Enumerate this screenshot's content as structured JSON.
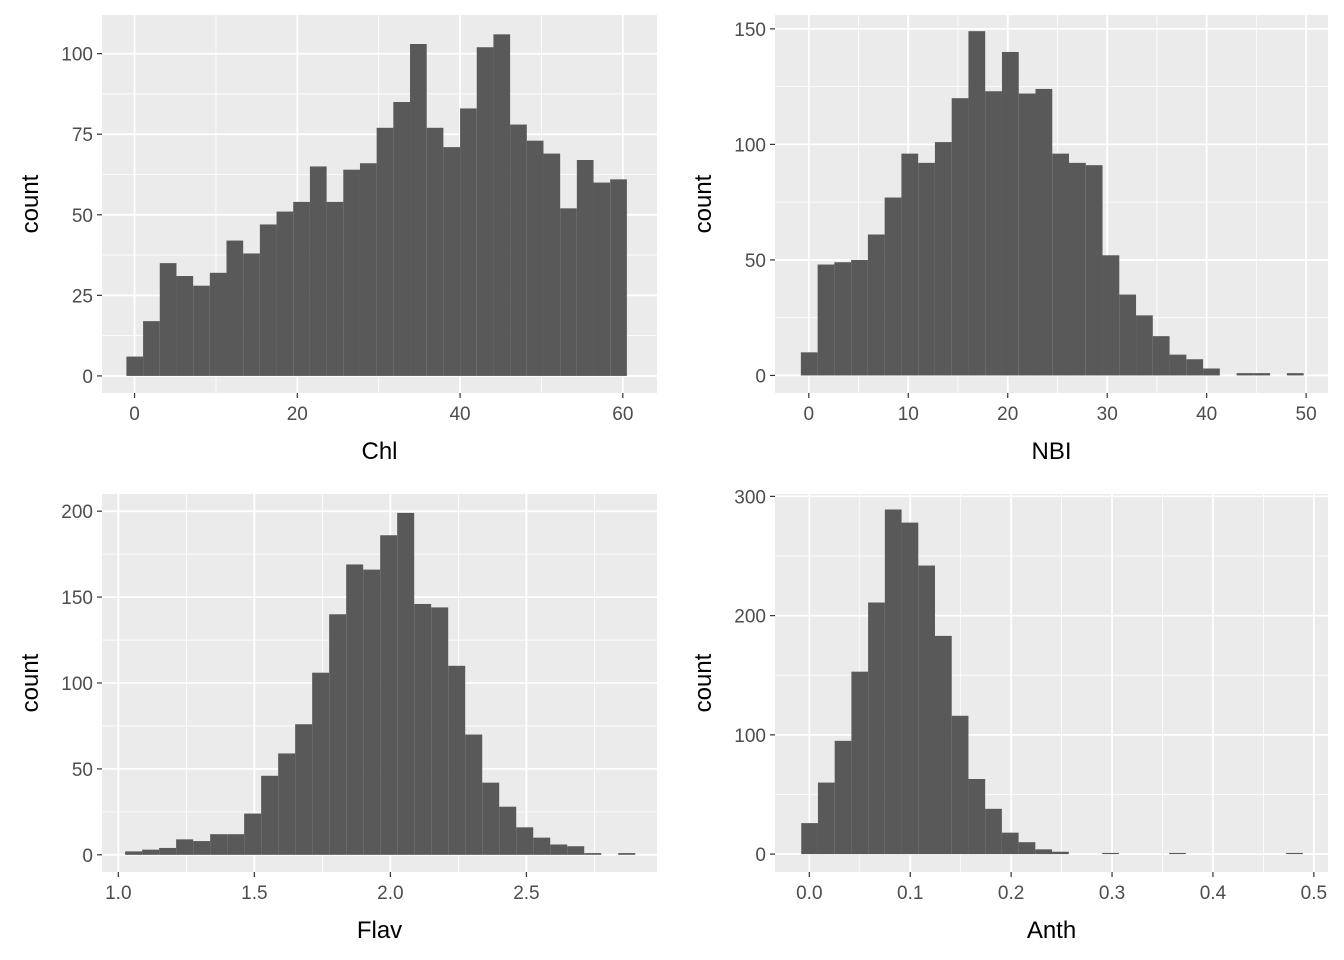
{
  "style": {
    "panel_background": "#ebebeb",
    "grid_color": "#ffffff",
    "bar_color": "#595959",
    "tick_color": "#333333",
    "tick_label_color": "#4d4d4d"
  },
  "chart_data": [
    {
      "type": "bar",
      "subtype": "histogram",
      "xlabel": "Chl",
      "ylabel": "count",
      "xlim": [
        -4.0,
        64.2
      ],
      "ylim": [
        -5.3,
        112
      ],
      "xticks": [
        0,
        20,
        40,
        60
      ],
      "xtick_labels": [
        "0",
        "20",
        "40",
        "60"
      ],
      "yticks": [
        0,
        25,
        50,
        75,
        100
      ],
      "ytick_labels": [
        "0",
        "25",
        "50",
        "75",
        "100"
      ],
      "grid": true,
      "bin_start": -1.0,
      "bin_width": 2.05,
      "values": [
        6,
        17,
        35,
        31,
        28,
        32,
        42,
        38,
        47,
        51,
        54,
        65,
        54,
        64,
        66,
        77,
        85,
        103,
        77,
        71,
        83,
        102,
        106,
        78,
        73,
        69,
        52,
        67,
        60,
        61
      ]
    },
    {
      "type": "bar",
      "subtype": "histogram",
      "xlabel": "NBI",
      "ylabel": "count",
      "xlim": [
        -3.4,
        52.2
      ],
      "ylim": [
        -7.6,
        156
      ],
      "xticks": [
        0,
        10,
        20,
        30,
        40,
        50
      ],
      "xtick_labels": [
        "0",
        "10",
        "20",
        "30",
        "40",
        "50"
      ],
      "yticks": [
        0,
        50,
        100,
        150
      ],
      "ytick_labels": [
        "0",
        "50",
        "100",
        "150"
      ],
      "grid": true,
      "bin_start": -0.8,
      "bin_width": 1.685,
      "values": [
        10,
        48,
        49,
        50,
        61,
        77,
        96,
        92,
        101,
        120,
        149,
        123,
        140,
        122,
        124,
        96,
        92,
        91,
        52,
        35,
        26,
        17,
        9,
        7,
        3,
        0,
        1,
        1,
        0,
        1
      ]
    },
    {
      "type": "bar",
      "subtype": "histogram",
      "xlabel": "Flav",
      "ylabel": "count",
      "xlim": [
        0.94,
        2.98
      ],
      "ylim": [
        -10,
        210
      ],
      "xticks": [
        1.0,
        1.5,
        2.0,
        2.5
      ],
      "xtick_labels": [
        "1.0",
        "1.5",
        "2.0",
        "2.5"
      ],
      "yticks": [
        0,
        50,
        100,
        150,
        200
      ],
      "ytick_labels": [
        "0",
        "50",
        "100",
        "150",
        "200"
      ],
      "grid": true,
      "bin_start": 1.025,
      "bin_width": 0.0625,
      "values": [
        2,
        3,
        4,
        9,
        8,
        12,
        12,
        24,
        46,
        59,
        76,
        106,
        140,
        169,
        166,
        186,
        199,
        146,
        144,
        110,
        70,
        42,
        28,
        16,
        10,
        6,
        5,
        1,
        0,
        1
      ]
    },
    {
      "type": "bar",
      "subtype": "histogram",
      "xlabel": "Anth",
      "ylabel": "count",
      "xlim": [
        -0.034,
        0.514
      ],
      "ylim": [
        -15,
        302
      ],
      "xticks": [
        0.0,
        0.1,
        0.2,
        0.3,
        0.4,
        0.5
      ],
      "xtick_labels": [
        "0.0",
        "0.1",
        "0.2",
        "0.3",
        "0.4",
        "0.5"
      ],
      "yticks": [
        0,
        100,
        200,
        300
      ],
      "ytick_labels": [
        "0",
        "100",
        "200",
        "300"
      ],
      "grid": true,
      "bin_start": -0.008,
      "bin_width": 0.01657,
      "values": [
        26,
        60,
        95,
        153,
        211,
        289,
        278,
        242,
        183,
        116,
        63,
        38,
        18,
        10,
        4,
        2,
        0,
        0,
        1,
        0,
        0,
        0,
        1,
        0,
        0,
        0,
        0,
        0,
        0,
        1
      ]
    }
  ]
}
